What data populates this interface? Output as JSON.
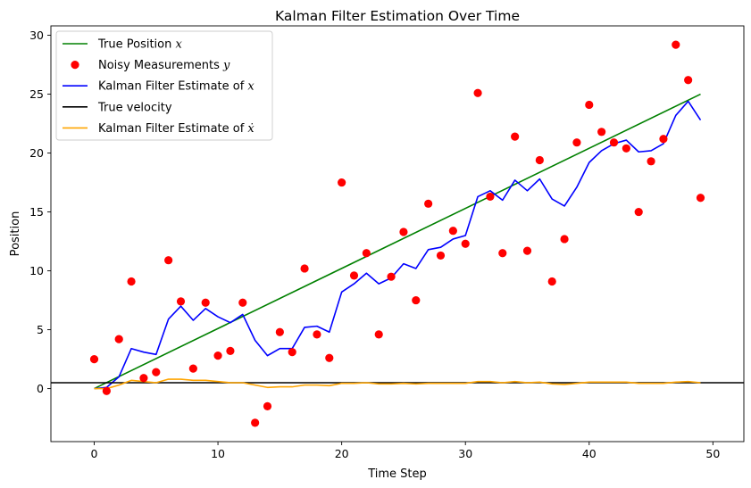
{
  "chart_data": {
    "type": "line",
    "title": "Kalman Filter Estimation Over Time",
    "xlabel": "Time Step",
    "ylabel": "Position",
    "xlim": [
      -3.5,
      52.5
    ],
    "ylim": [
      -4.5,
      30.8
    ],
    "xticks": [
      0,
      10,
      20,
      30,
      40,
      50
    ],
    "yticks": [
      0,
      5,
      10,
      15,
      20,
      25,
      30
    ],
    "grid": false,
    "legend_position": "top-left",
    "colors": {
      "true_position": "#008000",
      "measurements": "#ff0000",
      "estimate_x": "#0000ff",
      "true_velocity": "#000000",
      "estimate_xdot": "#ffa500"
    },
    "series": [
      {
        "name": "True Position x",
        "label_text": "True Position ",
        "label_var": "x",
        "kind": "line",
        "color": "#008000",
        "x": [
          0,
          49
        ],
        "y": [
          0,
          25
        ]
      },
      {
        "name": "Noisy Measurements y",
        "label_text": "Noisy Measurements ",
        "label_var": "y",
        "kind": "scatter",
        "color": "#ff0000",
        "x": [
          0,
          1,
          2,
          3,
          4,
          5,
          6,
          7,
          8,
          9,
          10,
          11,
          12,
          13,
          14,
          15,
          16,
          17,
          18,
          19,
          20,
          21,
          22,
          23,
          24,
          25,
          26,
          27,
          28,
          29,
          30,
          31,
          32,
          33,
          34,
          35,
          36,
          37,
          38,
          39,
          40,
          41,
          42,
          43,
          44,
          45,
          46,
          47,
          48,
          49
        ],
        "y": [
          2.5,
          -0.2,
          4.2,
          9.1,
          0.9,
          1.4,
          10.9,
          7.4,
          1.7,
          7.3,
          2.8,
          3.2,
          7.3,
          -2.9,
          -1.5,
          4.8,
          3.1,
          10.2,
          4.6,
          2.6,
          17.5,
          9.6,
          11.5,
          4.6,
          9.5,
          13.3,
          7.5,
          15.7,
          11.3,
          13.4,
          12.3,
          25.1,
          16.3,
          11.5,
          21.4,
          11.7,
          19.4,
          9.1,
          12.7,
          20.9,
          24.1,
          21.8,
          20.9,
          20.4,
          15.0,
          19.3,
          21.2,
          29.2,
          26.2,
          16.2
        ]
      },
      {
        "name": "Kalman Filter Estimate of x",
        "label_text": "Kalman Filter Estimate of ",
        "label_var": "x",
        "kind": "line",
        "color": "#0000ff",
        "x": [
          0,
          1,
          2,
          3,
          4,
          5,
          6,
          7,
          8,
          9,
          10,
          11,
          12,
          13,
          14,
          15,
          16,
          17,
          18,
          19,
          20,
          21,
          22,
          23,
          24,
          25,
          26,
          27,
          28,
          29,
          30,
          31,
          32,
          33,
          34,
          35,
          36,
          37,
          38,
          39,
          40,
          41,
          42,
          43,
          44,
          45,
          46,
          47,
          48,
          49
        ],
        "y": [
          0.0,
          0.1,
          1.0,
          3.4,
          3.1,
          2.9,
          5.9,
          7.0,
          5.8,
          6.8,
          6.1,
          5.6,
          6.3,
          4.1,
          2.8,
          3.4,
          3.4,
          5.2,
          5.3,
          4.8,
          8.2,
          8.9,
          9.8,
          8.9,
          9.4,
          10.6,
          10.2,
          11.8,
          12.0,
          12.7,
          13.0,
          16.3,
          16.8,
          16.0,
          17.7,
          16.8,
          17.8,
          16.1,
          15.5,
          17.1,
          19.2,
          20.2,
          20.8,
          21.1,
          20.1,
          20.2,
          20.8,
          23.2,
          24.4,
          22.8
        ]
      },
      {
        "name": "True velocity",
        "label_text": "True velocity",
        "label_var": "",
        "kind": "hline",
        "color": "#000000",
        "y": 0.5
      },
      {
        "name": "Kalman Filter Estimate of x dot",
        "label_text": "Kalman Filter Estimate of ",
        "label_var": "ẋ",
        "kind": "line",
        "color": "#ffa500",
        "x": [
          0,
          1,
          2,
          3,
          4,
          5,
          6,
          7,
          8,
          9,
          10,
          11,
          12,
          13,
          14,
          15,
          16,
          17,
          18,
          19,
          20,
          21,
          22,
          23,
          24,
          25,
          26,
          27,
          28,
          29,
          30,
          31,
          32,
          33,
          34,
          35,
          36,
          37,
          38,
          39,
          40,
          41,
          42,
          43,
          44,
          45,
          46,
          47,
          48,
          49
        ],
        "y": [
          0.0,
          0.0,
          0.3,
          0.7,
          0.6,
          0.5,
          0.8,
          0.8,
          0.7,
          0.7,
          0.6,
          0.5,
          0.5,
          0.3,
          0.1,
          0.15,
          0.15,
          0.3,
          0.3,
          0.25,
          0.45,
          0.45,
          0.5,
          0.4,
          0.4,
          0.45,
          0.4,
          0.45,
          0.45,
          0.45,
          0.45,
          0.6,
          0.6,
          0.5,
          0.6,
          0.5,
          0.55,
          0.4,
          0.35,
          0.45,
          0.55,
          0.55,
          0.55,
          0.55,
          0.45,
          0.45,
          0.45,
          0.55,
          0.6,
          0.5
        ]
      }
    ]
  }
}
